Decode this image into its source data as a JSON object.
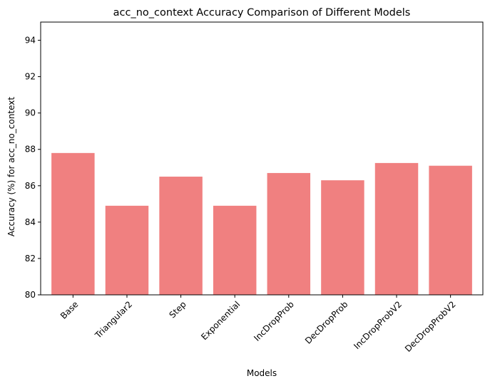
{
  "chart_data": {
    "type": "bar",
    "title": "acc_no_context Accuracy Comparison of Different Models",
    "xlabel": "Models",
    "ylabel": "Accuracy (%) for acc_no_context",
    "categories": [
      "Base",
      "Triangular2",
      "Step",
      "Exponential",
      "IncDropProb",
      "DecDropProb",
      "IncDropProbV2",
      "DecDropProbV2"
    ],
    "values": [
      87.8,
      84.9,
      86.5,
      84.9,
      86.7,
      86.3,
      87.25,
      87.1
    ],
    "ylim": [
      80,
      95
    ],
    "yticks": [
      80,
      82,
      84,
      86,
      88,
      90,
      92,
      94
    ],
    "bar_color": "#f08080",
    "grid": false,
    "legend": "none"
  }
}
